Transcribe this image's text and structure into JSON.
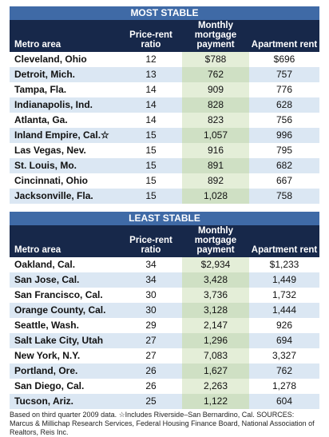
{
  "sections": [
    {
      "title": "MOST STABLE",
      "header": [
        "Metro area",
        "Price-rent ratio",
        "Monthly mortgage payment",
        "Apartment rent"
      ],
      "rows": [
        [
          "Cleveland, Ohio",
          "12",
          "$788",
          "$696"
        ],
        [
          "Detroit, Mich.",
          "13",
          "762",
          "757"
        ],
        [
          "Tampa, Fla.",
          "14",
          "909",
          "776"
        ],
        [
          "Indianapolis, Ind.",
          "14",
          "828",
          "628"
        ],
        [
          "Atlanta, Ga.",
          "14",
          "823",
          "756"
        ],
        [
          "Inland Empire, Cal.☆",
          "15",
          "1,057",
          "996"
        ],
        [
          "Las Vegas, Nev.",
          "15",
          "916",
          "795"
        ],
        [
          "St. Louis, Mo.",
          "15",
          "891",
          "682"
        ],
        [
          "Cincinnati, Ohio",
          "15",
          "892",
          "667"
        ],
        [
          "Jacksonville, Fla.",
          "15",
          "1,028",
          "758"
        ]
      ]
    },
    {
      "title": "LEAST STABLE",
      "header": [
        "Metro area",
        "Price-rent ratio",
        "Monthly mortgage payment",
        "Apartment rent"
      ],
      "rows": [
        [
          "Oakland, Cal.",
          "34",
          "$2,934",
          "$1,233"
        ],
        [
          "San Jose, Cal.",
          "34",
          "3,428",
          "1,449"
        ],
        [
          "San Francisco, Cal.",
          "30",
          "3,736",
          "1,732"
        ],
        [
          "Orange County, Cal.",
          "30",
          "3,128",
          "1,444"
        ],
        [
          "Seattle, Wash.",
          "29",
          "2,147",
          "926"
        ],
        [
          "Salt Lake City, Utah",
          "27",
          "1,296",
          "694"
        ],
        [
          "New York, N.Y.",
          "27",
          "7,083",
          "3,327"
        ],
        [
          "Portland, Ore.",
          "26",
          "1,627",
          "762"
        ],
        [
          "San Diego, Cal.",
          "26",
          "2,263",
          "1,278"
        ],
        [
          "Tucson, Ariz.",
          "25",
          "1,122",
          "604"
        ]
      ]
    }
  ],
  "footnote": "Based on third quarter 2009 data. ☆Includes Riverside–San Bernardino, Cal.   SOURCES: Marcus & Millichap Research Services, Federal Housing Finance Board, National Association of Realtors, Reis Inc."
}
